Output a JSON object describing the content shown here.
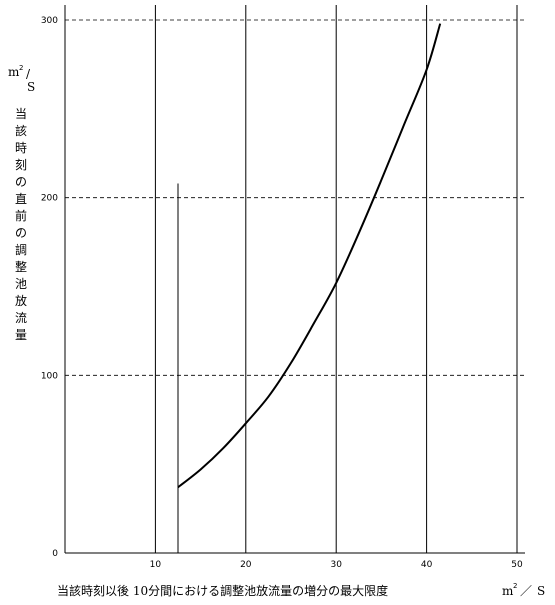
{
  "chart_data": {
    "type": "line",
    "title": "",
    "xlabel": "当該時刻以後 10分間における調整池放流量の増分の最大限度",
    "ylabel": "当該時刻の直前の調整池放流量",
    "x_unit": {
      "base": "m",
      "exp": "2",
      "sep": "／",
      "den": "S"
    },
    "y_unit": {
      "base": "m",
      "exp": "2",
      "sep": "/",
      "den": "S"
    },
    "xlim": [
      0,
      50
    ],
    "ylim": [
      0,
      300
    ],
    "x_ticks": [
      10,
      20,
      30,
      40,
      50
    ],
    "y_ticks": [
      0,
      100,
      200,
      300
    ],
    "x_tick_labels": [
      "10",
      "20",
      "30",
      "40",
      "50"
    ],
    "y_tick_labels": [
      "0",
      "100",
      "200",
      "300"
    ],
    "grid": {
      "x": "solid",
      "y": "dashed"
    },
    "start_marker_x": 12.5,
    "start_marker_top_y": 208,
    "series": [
      {
        "x": [
          12.5,
          15,
          17.5,
          20,
          22.5,
          25,
          27.5,
          30,
          32.5,
          35,
          37.5,
          40,
          41.5
        ],
        "y": [
          37,
          47,
          59,
          73,
          88,
          107,
          129,
          152,
          180,
          210,
          241,
          272,
          298
        ]
      }
    ]
  }
}
